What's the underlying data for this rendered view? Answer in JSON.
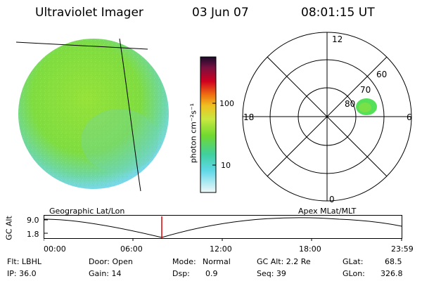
{
  "header": {
    "instrument": "Ultraviolet Imager",
    "date": "03 Jun 07",
    "time": "08:01:15 UT"
  },
  "colorbar": {
    "label": "photon cm⁻²s⁻¹",
    "ticks": [
      "100",
      "10"
    ]
  },
  "polar_plot": {
    "mlt_labels": {
      "top": "12",
      "bottom": "0",
      "left": "18",
      "right": "6"
    },
    "lat_labels": [
      "80",
      "70",
      "60"
    ]
  },
  "frame_labels": {
    "left": "Geographic Lat/Lon",
    "right": "Apex MLat/MLT"
  },
  "altitude_plot": {
    "ylabel": "GC Alt",
    "yticks": [
      "9.0",
      "1.8"
    ],
    "xticks": [
      "00:00",
      "06:00",
      "12:00",
      "18:00",
      "23:59"
    ],
    "marker_time": "08:01"
  },
  "info": {
    "filter": "Flt: LBHL",
    "ip": "IP: 36.0",
    "door": "Door: Open",
    "gain": "Gain: 14",
    "mode_label": "Mode:",
    "mode_value": "Normal",
    "dsp_label": "Dsp:",
    "dsp_value": "0.9",
    "gc_alt": "GC Alt: 2.2 Re",
    "seq": "Seq: 39",
    "glat_label": "GLat:",
    "glat_value": "68.5",
    "glon_label": "GLon:",
    "glon_value": "326.8"
  },
  "colors": {
    "disk_green": "#7fe03a",
    "disk_cyan": "#6cd8e0",
    "spot_green": "#55e05a",
    "marker_red": "#e00000"
  }
}
